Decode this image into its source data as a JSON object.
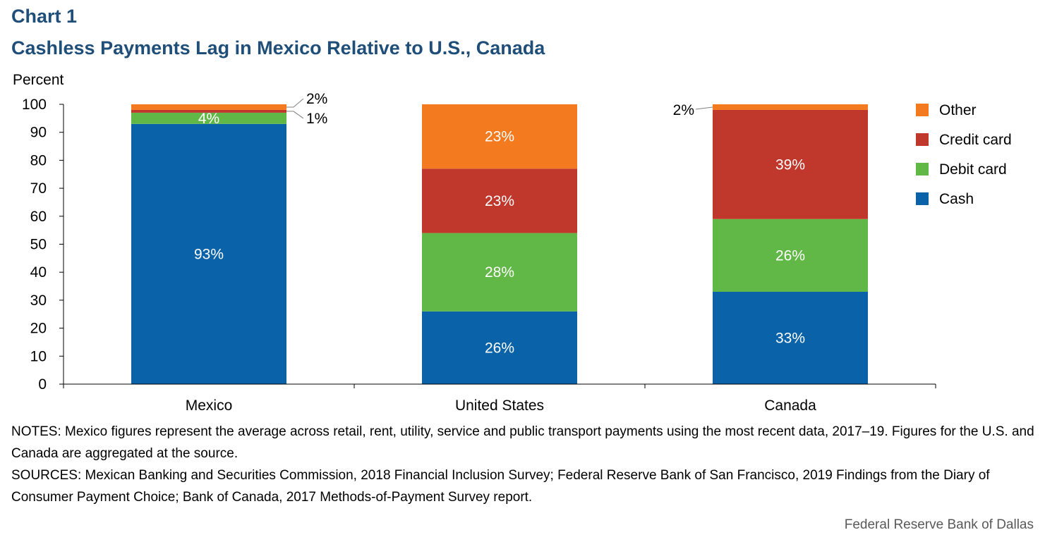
{
  "chart_data": {
    "type": "bar",
    "stacked": true,
    "chart_label": "Chart 1",
    "title": "Cashless Payments Lag in Mexico Relative to U.S., Canada",
    "ylabel": "Percent",
    "ylim": [
      0,
      100
    ],
    "yticks": [
      0,
      10,
      20,
      30,
      40,
      50,
      60,
      70,
      80,
      90,
      100
    ],
    "grid": false,
    "legend_position": "right",
    "categories": [
      "Mexico",
      "United States",
      "Canada"
    ],
    "series": [
      {
        "name": "Cash",
        "color": "#0a62a8",
        "values": [
          93,
          26,
          33
        ],
        "labels": [
          "93%",
          "26%",
          "33%"
        ]
      },
      {
        "name": "Debit card",
        "color": "#62b846",
        "values": [
          4,
          28,
          26
        ],
        "labels": [
          "4%",
          "28%",
          "26%"
        ]
      },
      {
        "name": "Credit card",
        "color": "#c0372c",
        "values": [
          1,
          23,
          39
        ],
        "labels": [
          "1%",
          "23%",
          "39%"
        ]
      },
      {
        "name": "Other",
        "color": "#f47a20",
        "values": [
          2,
          23,
          2
        ],
        "labels": [
          "2%",
          "23%",
          "2%"
        ]
      }
    ],
    "legend_order": [
      "Other",
      "Credit card",
      "Debit card",
      "Cash"
    ]
  },
  "notes": "NOTES: Mexico figures represent the average across retail, rent, utility, service and public transport payments using the most recent data, 2017–19. Figures for the U.S. and Canada are aggregated at the source.",
  "sources": "SOURCES: Mexican Banking and Securities Commission, 2018 Financial Inclusion Survey; Federal Reserve Bank of San Francisco, 2019 Findings from the Diary of Consumer Payment Choice; Bank of Canada, 2017 Methods-of-Payment Survey report.",
  "credit": "Federal Reserve Bank of Dallas"
}
